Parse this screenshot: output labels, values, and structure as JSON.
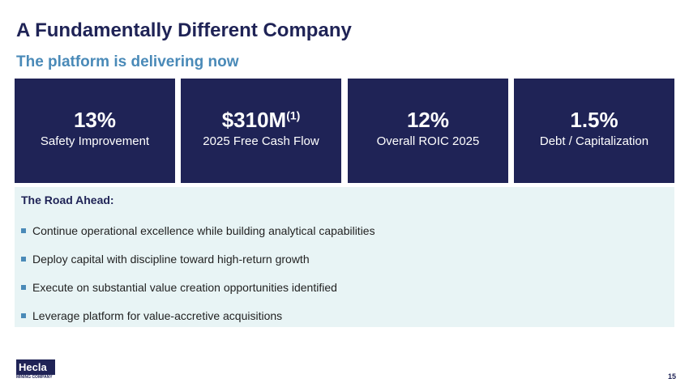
{
  "header": {
    "title": "A Fundamentally Different Company",
    "subtitle": "The platform is delivering now"
  },
  "metrics": [
    {
      "value": "13%",
      "label": "Safety Improvement"
    },
    {
      "value": "$310M",
      "footnote": "(1)",
      "label": "2025 Free Cash Flow"
    },
    {
      "value": "12%",
      "label": "Overall ROIC 2025"
    },
    {
      "value": "1.5%",
      "label": "Debt / Capitalization"
    }
  ],
  "road_ahead": {
    "title": "The Road Ahead:",
    "items": [
      "Continue operational excellence while building analytical capabilities",
      "Deploy capital with discipline toward high-return growth",
      "Execute on substantial value creation opportunities identified",
      "Leverage platform for value-accretive acquisitions"
    ]
  },
  "footer": {
    "logo": "Hecla",
    "logo_sub": "MINING COMPANY",
    "page": "15"
  }
}
